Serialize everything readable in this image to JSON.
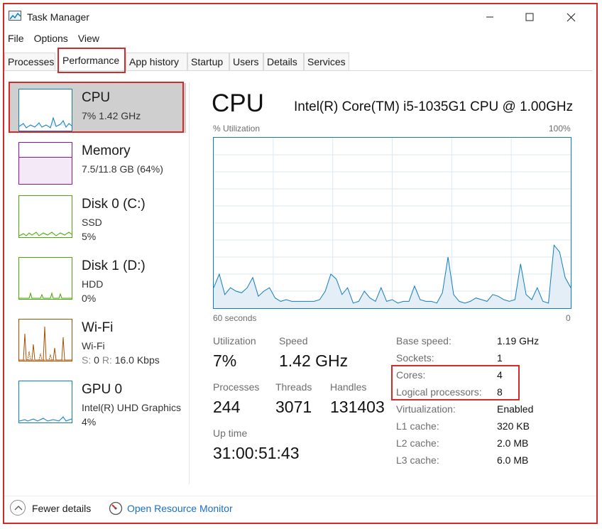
{
  "window": {
    "title": "Task Manager",
    "controls": {
      "minimize": "minimize-icon",
      "maximize": "maximize-icon",
      "close": "close-icon"
    }
  },
  "menu": [
    "File",
    "Options",
    "View"
  ],
  "tabs": [
    "Processes",
    "Performance",
    "App history",
    "Startup",
    "Users",
    "Details",
    "Services"
  ],
  "active_tab": "Performance",
  "sidebar": {
    "items": [
      {
        "name": "CPU",
        "line1": "7%  1.42 GHz",
        "line2": "",
        "color": "#117dbb"
      },
      {
        "name": "Memory",
        "line1": "7.5/11.8 GB (64%)",
        "line2": "",
        "color": "#8b12ae"
      },
      {
        "name": "Disk 0 (C:)",
        "line1": "SSD",
        "line2": "5%",
        "color": "#4da60c"
      },
      {
        "name": "Disk 1 (D:)",
        "line1": "HDD",
        "line2": "0%",
        "color": "#4da60c"
      },
      {
        "name": "Wi-Fi",
        "line1": "Wi-Fi",
        "line2_s_label": "S:",
        "line2_s_value": "0",
        "line2_r_label": "R:",
        "line2_r_value": "16.0 Kbps",
        "color": "#a74f01"
      },
      {
        "name": "GPU 0",
        "line1": "Intel(R) UHD Graphics",
        "line2": "4%",
        "color": "#117dbb"
      }
    ]
  },
  "main": {
    "title": "CPU",
    "model": "Intel(R) Core(TM) i5-1035G1 CPU @ 1.00GHz",
    "graph_label": "% Utilization",
    "graph_max_label": "100%",
    "time_label": "60 seconds",
    "time_min_label": "0",
    "stats": {
      "utilization_label": "Utilization",
      "utilization": "7%",
      "speed_label": "Speed",
      "speed": "1.42 GHz",
      "processes_label": "Processes",
      "processes": "244",
      "threads_label": "Threads",
      "threads": "3071",
      "handles_label": "Handles",
      "handles": "131403",
      "uptime_label": "Up time",
      "uptime": "31:00:51:43"
    },
    "specs": [
      {
        "label": "Base speed:",
        "value": "1.19 GHz"
      },
      {
        "label": "Sockets:",
        "value": "1"
      },
      {
        "label": "Cores:",
        "value": "4"
      },
      {
        "label": "Logical processors:",
        "value": "8"
      },
      {
        "label": "Virtualization:",
        "value": "Enabled"
      },
      {
        "label": "L1 cache:",
        "value": "320 KB"
      },
      {
        "label": "L2 cache:",
        "value": "2.0 MB"
      },
      {
        "label": "L3 cache:",
        "value": "6.0 MB"
      }
    ]
  },
  "cpu_history_percent": [
    12,
    20,
    8,
    12,
    10,
    9,
    12,
    18,
    7,
    10,
    12,
    6,
    4,
    5,
    4,
    4,
    4,
    4,
    4,
    5,
    10,
    20,
    17,
    8,
    12,
    3,
    4,
    10,
    6,
    4,
    12,
    4,
    5,
    3,
    4,
    4,
    13,
    5,
    4,
    4,
    3,
    9,
    30,
    8,
    4,
    3,
    4,
    6,
    5,
    4,
    8,
    7,
    5,
    4,
    5,
    26,
    8,
    5,
    12,
    4,
    3,
    37,
    33,
    18,
    12
  ],
  "footer": {
    "fewer_details": "Fewer details",
    "open_resource_monitor": "Open Resource Monitor"
  },
  "colors": {
    "cpu": "#117dbb",
    "memory": "#8b12ae",
    "disk": "#4da60c",
    "wifi": "#a74f01",
    "highlight": "#d42a2a",
    "link": "#1a6fc2"
  }
}
